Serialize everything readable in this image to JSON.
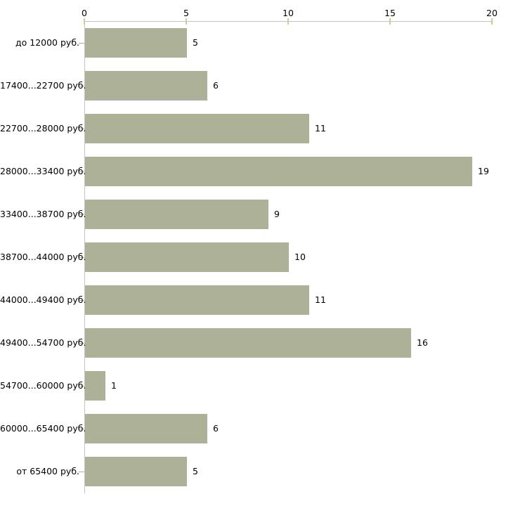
{
  "chart_data": {
    "type": "bar",
    "orientation": "horizontal",
    "title": "",
    "xlabel": "",
    "ylabel": "",
    "categories": [
      "до 12000 руб.",
      "17400...22700 руб.",
      "22700...28000 руб.",
      "28000...33400 руб.",
      "33400...38700 руб.",
      "38700...44000 руб.",
      "44000...49400 руб.",
      "49400...54700 руб.",
      "54700...60000 руб.",
      "60000...65400 руб.",
      "от 65400 руб."
    ],
    "values": [
      5,
      6,
      11,
      19,
      9,
      10,
      11,
      16,
      1,
      6,
      5
    ],
    "x_ticks": [
      0,
      5,
      10,
      15,
      20
    ],
    "xlim": [
      0,
      20
    ],
    "grid": false,
    "legend": false,
    "axis_position": "top",
    "colors": {
      "bar": "#adb197",
      "axis_line": "#c3c3c3",
      "x_tick": "#cccc99",
      "y_tick": "#bfa98a",
      "text": "#000000",
      "background": "#ffffff"
    }
  }
}
